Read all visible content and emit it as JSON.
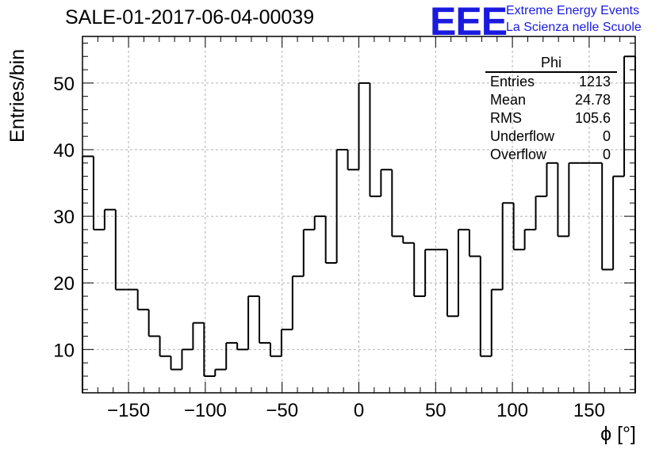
{
  "title": "SALE-01-2017-06-04-00039",
  "logo": {
    "mark": "EEE",
    "line1": "Extreme Energy Events",
    "line2": "La Scienza nelle Scuole",
    "color": "#1a1adf"
  },
  "stats": {
    "name": "Phi",
    "rows": [
      {
        "label": "Entries",
        "value": "1213"
      },
      {
        "label": "Mean",
        "value": "24.78"
      },
      {
        "label": "RMS",
        "value": "105.6"
      },
      {
        "label": "Underflow",
        "value": "0"
      },
      {
        "label": "Overflow",
        "value": "0"
      }
    ]
  },
  "chart_data": {
    "type": "bar",
    "style": "step histogram",
    "title": "SALE-01-2017-06-04-00039",
    "xlabel": "ϕ [°]",
    "ylabel": "Entries/bin",
    "xlim": [
      -180,
      180
    ],
    "ylim": [
      3.5,
      57
    ],
    "x_ticks": [
      -150,
      -100,
      -50,
      0,
      50,
      100,
      150
    ],
    "y_ticks": [
      10,
      20,
      30,
      40,
      50
    ],
    "grid": true,
    "bin_width": 7.2,
    "values": [
      39,
      28,
      31,
      19,
      19,
      16,
      12,
      9,
      7,
      10,
      14,
      6,
      7,
      11,
      10,
      18,
      11,
      9,
      13,
      21,
      28,
      30,
      23,
      40,
      37,
      50,
      33,
      37,
      27,
      26,
      18,
      25,
      25,
      15,
      28,
      24,
      9,
      19,
      32,
      25,
      28,
      33,
      38,
      27,
      38,
      38,
      38,
      22,
      36,
      54
    ]
  }
}
